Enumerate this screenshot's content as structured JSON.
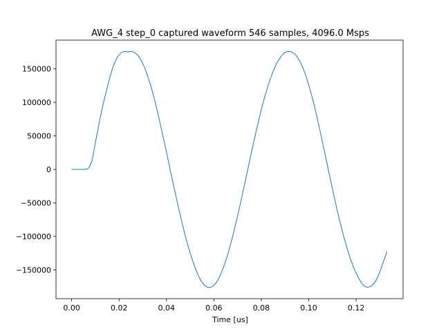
{
  "chart_data": {
    "type": "line",
    "title": "AWG_4 step_0 captured waveform 546 samples, 4096.0 Msps",
    "xlabel": "Time [us]",
    "ylabel": "",
    "xlim": [
      -0.0066,
      0.1398
    ],
    "ylim": [
      -193000,
      193000
    ],
    "grid": false,
    "legend": "none",
    "line_color": "#1f77b4",
    "x_ticks": [
      0.0,
      0.02,
      0.04,
      0.06,
      0.08,
      0.1,
      0.12
    ],
    "x_tick_labels": [
      "0.00",
      "0.02",
      "0.04",
      "0.06",
      "0.08",
      "0.10",
      "0.12"
    ],
    "y_ticks": [
      150000,
      100000,
      50000,
      0,
      -50000,
      -100000,
      -150000
    ],
    "y_tick_labels": [
      "150000",
      "100000",
      "50000",
      "0",
      "−50000",
      "−100000",
      "−150000"
    ],
    "series": [
      {
        "x": [
          0.0,
          0.0015,
          0.003,
          0.0045,
          0.006,
          0.0068,
          0.0075,
          0.008,
          0.0085,
          0.009,
          0.0095,
          0.01,
          0.011,
          0.012,
          0.013,
          0.014,
          0.015,
          0.016,
          0.017,
          0.018,
          0.019,
          0.02,
          0.021,
          0.022,
          0.023,
          0.024,
          0.0245,
          0.025,
          0.026,
          0.027,
          0.028,
          0.029,
          0.03,
          0.031,
          0.032,
          0.033,
          0.034,
          0.035,
          0.036,
          0.037,
          0.038,
          0.039,
          0.04,
          0.041,
          0.042,
          0.043,
          0.044,
          0.045,
          0.046,
          0.047,
          0.048,
          0.049,
          0.05,
          0.051,
          0.052,
          0.053,
          0.054,
          0.055,
          0.056,
          0.057,
          0.058,
          0.059,
          0.06,
          0.061,
          0.062,
          0.063,
          0.064,
          0.065,
          0.066,
          0.067,
          0.068,
          0.069,
          0.07,
          0.071,
          0.072,
          0.073,
          0.074,
          0.075,
          0.076,
          0.077,
          0.078,
          0.079,
          0.08,
          0.081,
          0.082,
          0.083,
          0.084,
          0.085,
          0.086,
          0.087,
          0.088,
          0.089,
          0.09,
          0.091,
          0.092,
          0.093,
          0.094,
          0.095,
          0.096,
          0.097,
          0.098,
          0.099,
          0.1,
          0.101,
          0.102,
          0.103,
          0.104,
          0.105,
          0.106,
          0.107,
          0.108,
          0.109,
          0.11,
          0.111,
          0.112,
          0.113,
          0.114,
          0.115,
          0.116,
          0.117,
          0.118,
          0.119,
          0.12,
          0.121,
          0.122,
          0.123,
          0.124,
          0.125,
          0.126,
          0.127,
          0.128,
          0.129,
          0.13,
          0.131,
          0.132,
          0.133
        ],
        "y": [
          0,
          0,
          0,
          0,
          0,
          1000,
          4000,
          8000,
          12000,
          20000,
          30000,
          40000,
          58000,
          76000,
          93000,
          108000,
          122000,
          136000,
          148000,
          158000,
          166000,
          171000,
          174500,
          176000,
          176000,
          175000,
          176000,
          176000,
          175500,
          173500,
          170000,
          165000,
          158000,
          150000,
          140000,
          129000,
          117000,
          104000,
          89000,
          74000,
          58000,
          42000,
          26000,
          9000,
          -8000,
          -24000,
          -40000,
          -56000,
          -71000,
          -86000,
          -100000,
          -113000,
          -125000,
          -136000,
          -146000,
          -155000,
          -162500,
          -168500,
          -173000,
          -175500,
          -176500,
          -175500,
          -173000,
          -169000,
          -163000,
          -155500,
          -146500,
          -136500,
          -125000,
          -112500,
          -99000,
          -84500,
          -69500,
          -54000,
          -38000,
          -21500,
          -5000,
          11500,
          28000,
          44000,
          59500,
          74500,
          89000,
          102500,
          115000,
          126500,
          137000,
          146500,
          154500,
          161500,
          167000,
          171500,
          174500,
          176000,
          176000,
          175000,
          172500,
          168500,
          163000,
          156000,
          147500,
          137500,
          126000,
          113500,
          100000,
          85500,
          70000,
          54000,
          37500,
          21000,
          4000,
          -12500,
          -29000,
          -45000,
          -60500,
          -75500,
          -89500,
          -103000,
          -115500,
          -127000,
          -137500,
          -147000,
          -155000,
          -162000,
          -168000,
          -172500,
          -175500,
          -176000,
          -175000,
          -172500,
          -168000,
          -161500,
          -153000,
          -143000,
          -133000,
          -122500
        ]
      }
    ]
  }
}
